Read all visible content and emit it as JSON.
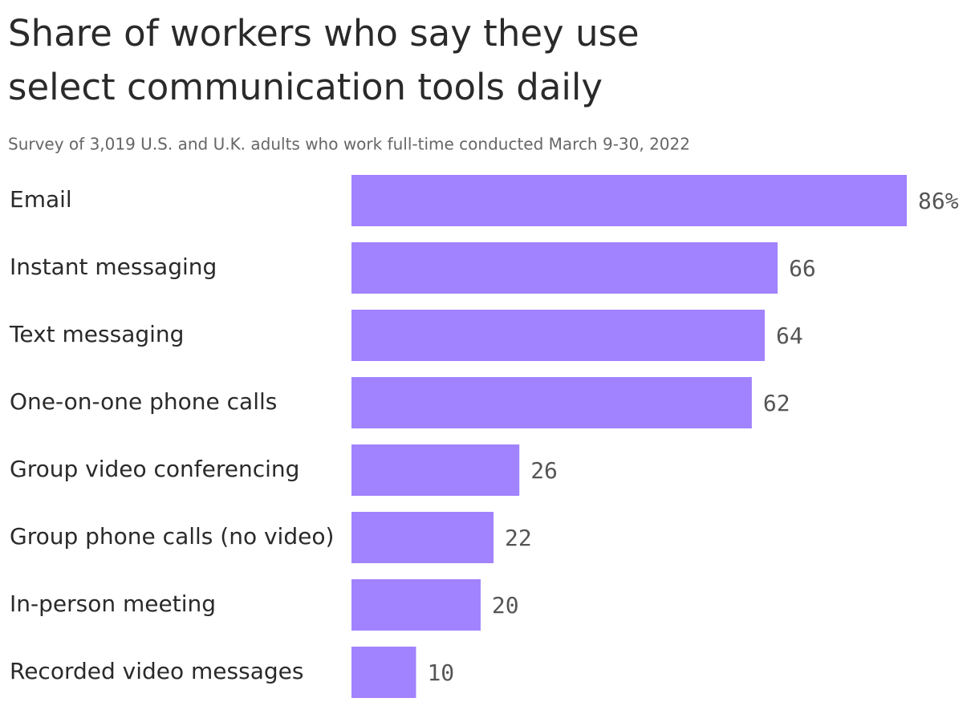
{
  "chart_data": {
    "type": "bar",
    "orientation": "horizontal",
    "title": "Share of workers who say they use select communication tools daily",
    "subtitle": "Survey of 3,019 U.S. and U.K. adults who work full-time conducted March 9-30, 2022",
    "categories": [
      "Email",
      "Instant messaging",
      "Text messaging",
      "One-on-one phone calls",
      "Group video conferencing",
      "Group phone calls (no video)",
      "In-person meeting",
      "Recorded video messages"
    ],
    "values": [
      86,
      66,
      64,
      62,
      26,
      22,
      20,
      10
    ],
    "value_labels": [
      "86%",
      "66",
      "64",
      "62",
      "26",
      "22",
      "20",
      "10"
    ],
    "color": "#a182ff"
  }
}
